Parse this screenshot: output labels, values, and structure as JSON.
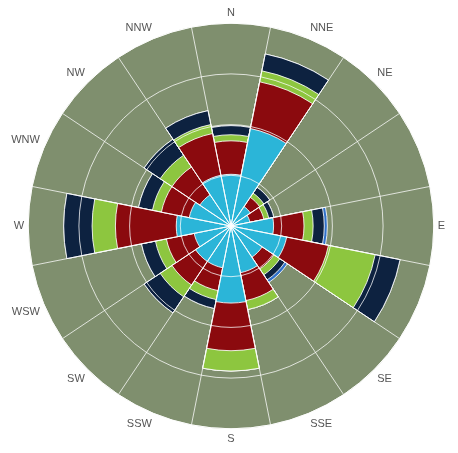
{
  "chart_data": {
    "type": "polarArea",
    "stacked": true,
    "grid": true,
    "tick_labels": false,
    "ylim": [
      0,
      20
    ],
    "yticks": [
      0,
      5,
      10,
      15,
      20
    ],
    "categories": [
      "N",
      "NNE",
      "NE",
      null,
      "E",
      null,
      "SE",
      "SSE",
      "S",
      "SSW",
      "SW",
      "WSW",
      "W",
      "WNW",
      "NW",
      "NNW"
    ],
    "series": [
      {
        "color": "#2bb5d8",
        "values": [
          5.1,
          9.8,
          2.3,
          1.9,
          4.2,
          5.6,
          3.7,
          4.7,
          7.6,
          4.2,
          4.2,
          3.7,
          5.4,
          4.2,
          3.7,
          5.1
        ]
      },
      {
        "color": "#8b0a0e",
        "values": [
          3.3,
          4.7,
          1.1,
          1.4,
          3.0,
          4.2,
          1.4,
          2.8,
          4.7,
          2.3,
          2.8,
          2.8,
          6.0,
          2.8,
          3.3,
          4.2
        ]
      },
      {
        "color": "#8dc63f",
        "values": [
          0.6,
          1.1,
          0.5,
          0.5,
          0.9,
          4.7,
          0.7,
          0.9,
          2.0,
          0.9,
          1.4,
          1.1,
          2.3,
          0.9,
          1.4,
          0.9
        ]
      },
      {
        "color": "#0d2240",
        "values": [
          0.9,
          1.7,
          0.7,
          0.5,
          1.1,
          2.5,
          0.6,
          0,
          0,
          0.9,
          1.9,
          1.4,
          2.8,
          1.4,
          1.9,
          1.4
        ]
      },
      {
        "color": "#2f70c9",
        "values": [
          0,
          0,
          0,
          0,
          0.3,
          0,
          0.3,
          0,
          0,
          0,
          0,
          0,
          0,
          0,
          0,
          0
        ]
      }
    ]
  }
}
